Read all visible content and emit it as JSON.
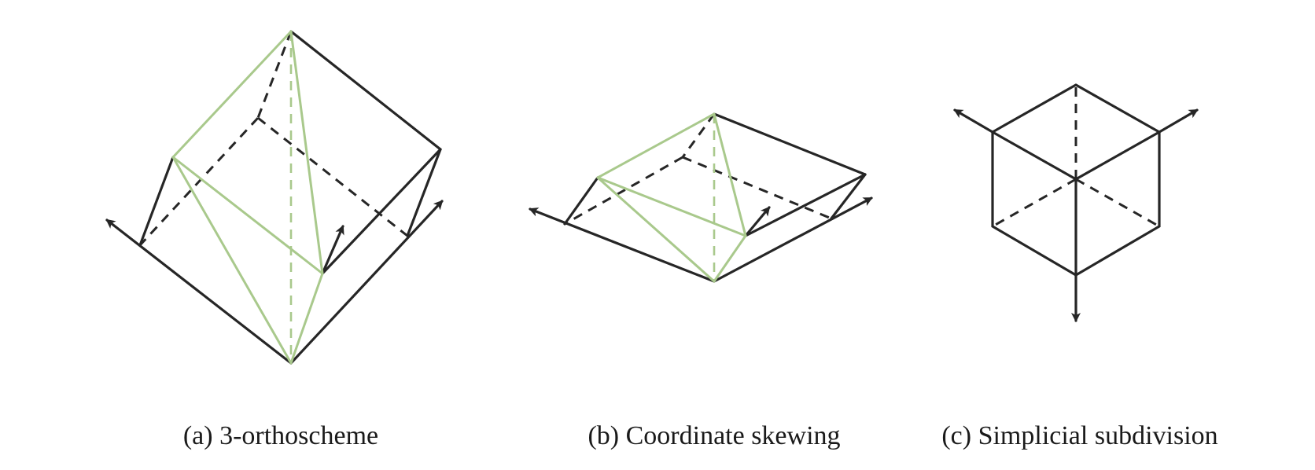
{
  "figure": {
    "panels": [
      {
        "id": "a",
        "caption": "(a) 3-orthoscheme"
      },
      {
        "id": "b",
        "caption": "(b) Coordinate skewing"
      },
      {
        "id": "c",
        "caption": "(c) Simplicial subdivision"
      }
    ],
    "colors": {
      "edge": "#262626",
      "simplex_edge": "#a9c98c",
      "background": "#ffffff"
    }
  }
}
